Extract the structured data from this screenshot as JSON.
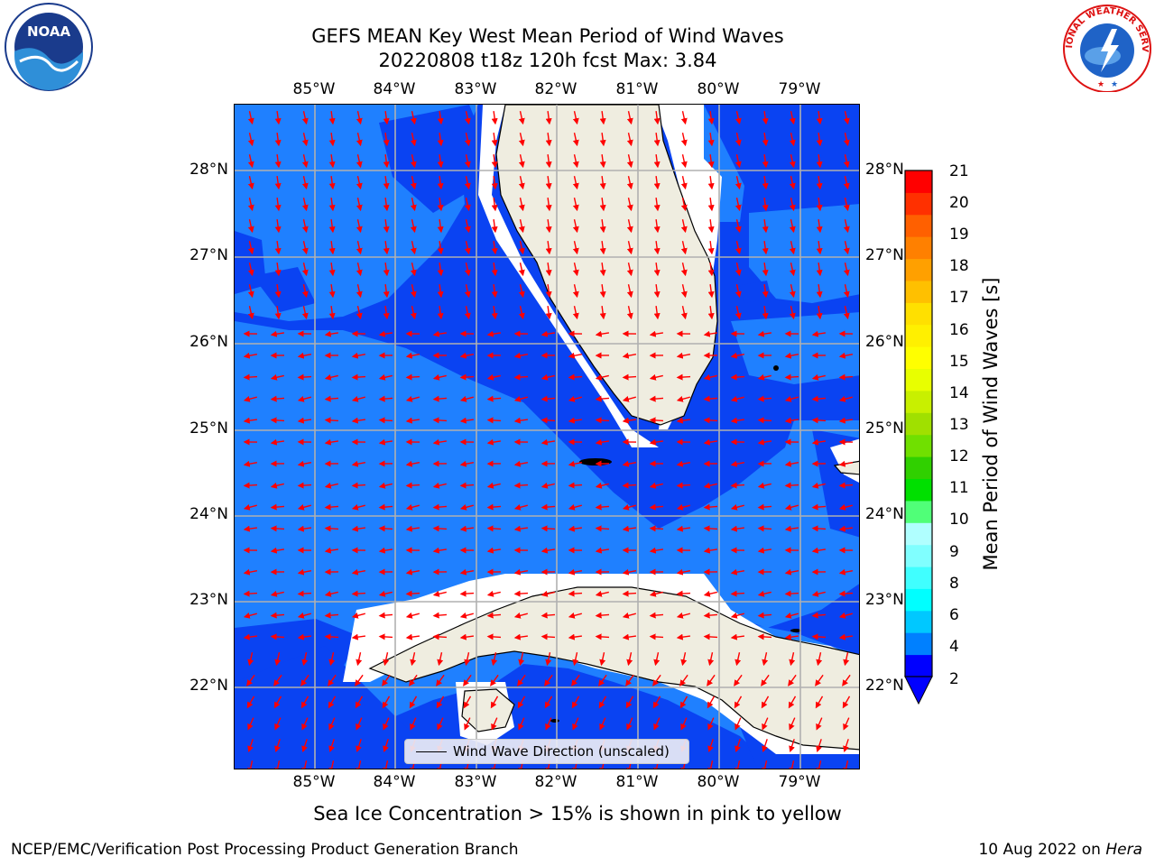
{
  "header": {
    "title_line1": "GEFS MEAN Key West Mean Period of Wind Waves",
    "title_line2": "20220808 t18z 120h fcst   Max: 3.84"
  },
  "logos": {
    "left": {
      "name": "noaa-logo",
      "text": "NOAA"
    },
    "right": {
      "name": "nws-logo",
      "text": "NATIONAL WEATHER SERVICE"
    }
  },
  "map": {
    "longitude_labels": [
      "85°W",
      "84°W",
      "83°W",
      "82°W",
      "81°W",
      "80°W",
      "79°W"
    ],
    "latitude_labels": [
      "28°N",
      "27°N",
      "26°N",
      "25°N",
      "24°N",
      "23°N",
      "22°N"
    ],
    "legend_label": "Wind Wave Direction (unscaled)",
    "colors": {
      "deep_band": "#0a43f2",
      "light_band": "#1f80ff",
      "land": "#efede0",
      "coast": "#000000",
      "arrows": "#ff0000",
      "grid": "#b0b0b0"
    }
  },
  "colorbar": {
    "label": "Mean Period of Wind Waves [s]",
    "ticks": [
      "21",
      "20",
      "19",
      "18",
      "17",
      "16",
      "15",
      "14",
      "13",
      "12",
      "11",
      "10",
      "9",
      "8",
      "6",
      "4",
      "2"
    ],
    "colors": [
      "#0000ff",
      "#0080ff",
      "#00c8ff",
      "#00ffff",
      "#40ffff",
      "#80ffff",
      "#b0ffff",
      "#50ff78",
      "#00e000",
      "#30d000",
      "#70e000",
      "#a0e000",
      "#c8f000",
      "#e8ff00",
      "#ffff00",
      "#fff000",
      "#ffe000",
      "#ffc000",
      "#ffa000",
      "#ff8000",
      "#ff6000",
      "#ff3000",
      "#ff0000"
    ]
  },
  "footer": {
    "note": "Sea Ice Concentration > 15% is shown in pink to yellow",
    "credit_left": "NCEP/EMC/Verification Post Processing Product Generation Branch",
    "credit_date": "10 Aug 2022 on ",
    "credit_machine": "Hera"
  }
}
